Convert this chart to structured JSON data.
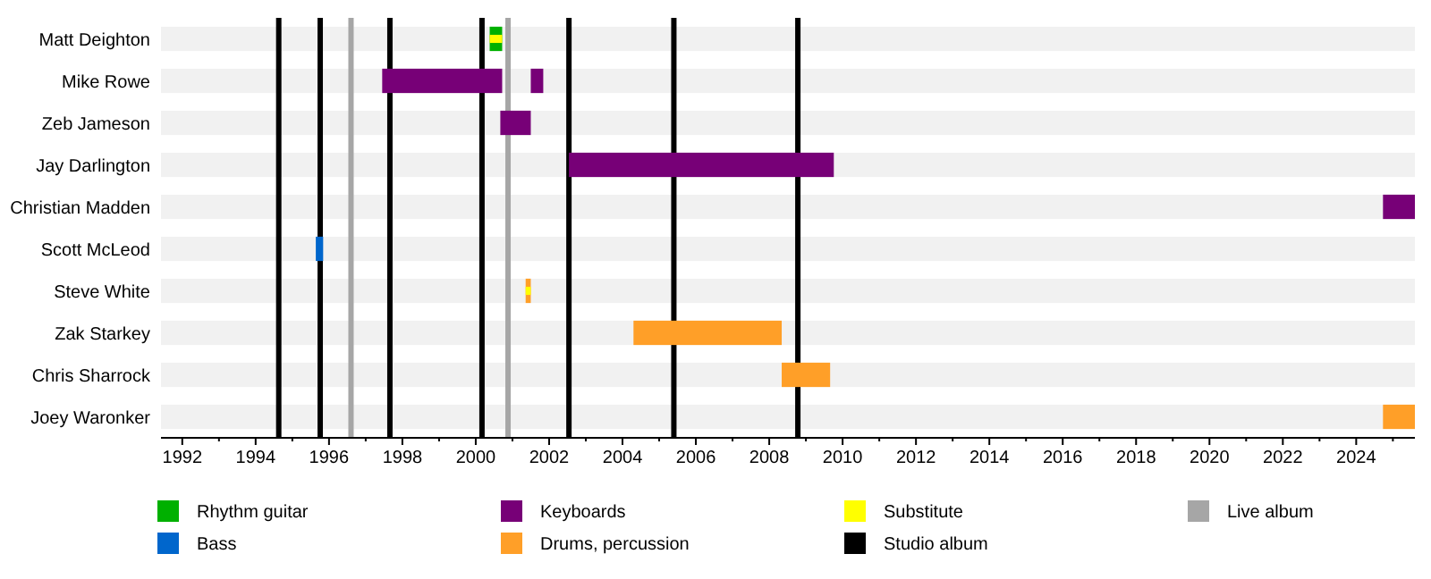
{
  "chart_data": {
    "type": "bar",
    "orientation": "horizontal",
    "legend": "bottom",
    "categories": [
      "Matt Deighton",
      "Mike Rowe",
      "Zeb Jameson",
      "Jay Darlington",
      "Christian Madden",
      "Scott McLeod",
      "Steve White",
      "Zak Starkey",
      "Chris Sharrock",
      "Joey Waronker"
    ],
    "series": [
      {
        "name": "Rhythm guitar",
        "color": "#00b000",
        "base": [
          2000.38,
          null,
          null,
          null,
          null,
          null,
          null,
          null,
          null,
          null
        ],
        "values": [
          0.34,
          null,
          null,
          null,
          null,
          null,
          null,
          null,
          null,
          null
        ]
      },
      {
        "name": "Bass",
        "color": "#0066cc",
        "base": [
          null,
          null,
          null,
          null,
          null,
          1995.64,
          null,
          null,
          null,
          null
        ],
        "values": [
          null,
          null,
          null,
          null,
          null,
          0.2,
          null,
          null,
          null,
          null
        ]
      },
      {
        "name": "Keyboards",
        "color": "#770077",
        "base": [
          null,
          1997.45,
          2000.67,
          2002.54,
          2024.73,
          null,
          null,
          null,
          null,
          null
        ],
        "values": [
          null,
          3.27,
          0.83,
          7.22,
          0.87,
          null,
          null,
          null,
          null,
          null
        ]
      },
      {
        "color": "#770077",
        "base": [
          null,
          2001.5,
          null,
          null,
          null,
          null,
          null,
          null,
          null,
          null
        ],
        "values": [
          null,
          0.34,
          null,
          null,
          null,
          null,
          null,
          null,
          null,
          null
        ]
      },
      {
        "name": "Drums, percussion",
        "color": "#ff9f28",
        "base": [
          null,
          null,
          null,
          null,
          null,
          null,
          2001.36,
          2004.3,
          2008.34,
          2024.73
        ],
        "values": [
          null,
          null,
          null,
          null,
          null,
          null,
          0.14,
          4.04,
          1.32,
          0.87
        ]
      },
      {
        "name": "Substitute",
        "color": "#ffff00",
        "base": [
          2000.38,
          null,
          null,
          null,
          null,
          null,
          2001.36,
          null,
          null,
          null
        ],
        "values": [
          0.34,
          null,
          null,
          null,
          null,
          null,
          0.14,
          null,
          null,
          null
        ]
      }
    ],
    "ref_lines": [
      {
        "axis": "x",
        "value": 1994.63,
        "label": "Studio album",
        "color": "#000000"
      },
      {
        "axis": "x",
        "value": 1995.76,
        "color": "#000000"
      },
      {
        "axis": "x",
        "value": 1997.66,
        "color": "#000000"
      },
      {
        "axis": "x",
        "value": 2000.17,
        "color": "#000000"
      },
      {
        "axis": "x",
        "value": 2002.54,
        "color": "#000000"
      },
      {
        "axis": "x",
        "value": 2005.4,
        "color": "#000000"
      },
      {
        "axis": "x",
        "value": 2008.78,
        "color": "#000000"
      },
      {
        "axis": "x",
        "value": 1996.6,
        "label": "Live album",
        "color": "#a6a6a6"
      },
      {
        "axis": "x",
        "value": 2000.88,
        "color": "#a6a6a6"
      }
    ],
    "xlim": [
      1991.42,
      2025.6
    ],
    "xticks": [
      1992,
      {
        "value": 1993,
        "label": null
      },
      1994,
      {
        "value": 1995,
        "label": null
      },
      1996,
      {
        "value": 1997,
        "label": null
      },
      1998,
      {
        "value": 1999,
        "label": null
      },
      2000,
      {
        "value": 2001,
        "label": null
      },
      2002,
      {
        "value": 2003,
        "label": null
      },
      2004,
      {
        "value": 2005,
        "label": null
      },
      2006,
      {
        "value": 2007,
        "label": null
      },
      2008,
      {
        "value": 2009,
        "label": null
      },
      2010,
      {
        "value": 2011,
        "label": null
      },
      2012,
      {
        "value": 2013,
        "label": null
      },
      2014,
      {
        "value": 2015,
        "label": null
      },
      2016,
      {
        "value": 2017,
        "label": null
      },
      2018,
      {
        "value": 2019,
        "label": null
      },
      2020,
      {
        "value": 2021,
        "label": null
      },
      2022,
      {
        "value": 2023,
        "label": null
      },
      2024,
      {
        "value": 2025,
        "label": null
      }
    ]
  }
}
